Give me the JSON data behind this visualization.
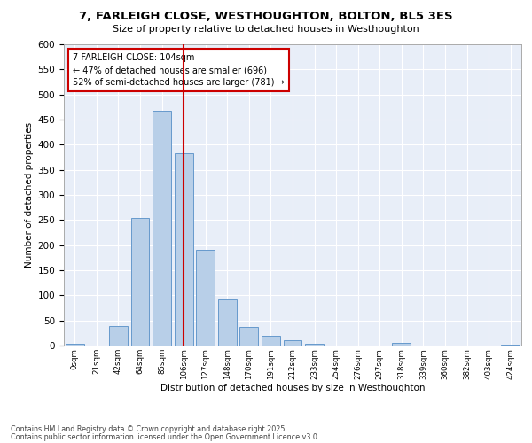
{
  "title_line1": "7, FARLEIGH CLOSE, WESTHOUGHTON, BOLTON, BL5 3ES",
  "title_line2": "Size of property relative to detached houses in Westhoughton",
  "xlabel": "Distribution of detached houses by size in Westhoughton",
  "ylabel": "Number of detached properties",
  "bin_labels": [
    "0sqm",
    "21sqm",
    "42sqm",
    "64sqm",
    "85sqm",
    "106sqm",
    "127sqm",
    "148sqm",
    "170sqm",
    "191sqm",
    "212sqm",
    "233sqm",
    "254sqm",
    "276sqm",
    "297sqm",
    "318sqm",
    "339sqm",
    "360sqm",
    "382sqm",
    "403sqm",
    "424sqm"
  ],
  "values": [
    4,
    0,
    38,
    255,
    467,
    383,
    191,
    92,
    37,
    20,
    11,
    4,
    0,
    0,
    0,
    5,
    0,
    0,
    0,
    0,
    2
  ],
  "bar_color": "#b8cfe8",
  "bar_edge_color": "#6699cc",
  "vline_bin_index": 5,
  "vline_color": "#cc0000",
  "annotation_text": "7 FARLEIGH CLOSE: 104sqm\n← 47% of detached houses are smaller (696)\n52% of semi-detached houses are larger (781) →",
  "annotation_box_color": "#cc0000",
  "ylim": [
    0,
    600
  ],
  "yticks": [
    0,
    50,
    100,
    150,
    200,
    250,
    300,
    350,
    400,
    450,
    500,
    550,
    600
  ],
  "background_color": "#e8eef8",
  "grid_color": "#ffffff",
  "footer_line1": "Contains HM Land Registry data © Crown copyright and database right 2025.",
  "footer_line2": "Contains public sector information licensed under the Open Government Licence v3.0."
}
